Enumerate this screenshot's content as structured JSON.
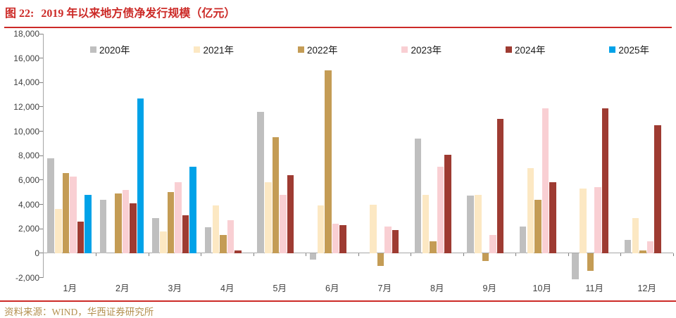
{
  "header": {
    "figure_label": "图 22:",
    "title": "2019 年以来地方债净发行规模（亿元）"
  },
  "footer": {
    "source": "资料来源：WIND，华西证券研究所"
  },
  "colors": {
    "title_red": "#CC2A27",
    "rule_red": "#CC2A27",
    "source_gold": "#B3904F",
    "axis_gray": "#A6A6A6",
    "label_gray": "#404040"
  },
  "chart_data": {
    "type": "bar",
    "title": "图 22: 2019 年以来地方债净发行规模（亿元）",
    "xlabel": "",
    "ylabel": "",
    "unit": "亿元",
    "ylim": [
      -2000,
      18000
    ],
    "ytick_step": 2000,
    "grid": false,
    "legend_position": "top",
    "categories": [
      "1月",
      "2月",
      "3月",
      "4月",
      "5月",
      "6月",
      "7月",
      "8月",
      "9月",
      "10月",
      "11月",
      "12月"
    ],
    "series": [
      {
        "name": "2020年",
        "color": "#BFBFBF",
        "values": [
          7800,
          4400,
          2900,
          2100,
          11600,
          -500,
          0,
          9400,
          4700,
          2200,
          -2100,
          1100
        ]
      },
      {
        "name": "2021年",
        "color": "#FCE8C3",
        "values": [
          3600,
          0,
          1800,
          3900,
          5800,
          3900,
          4000,
          4800,
          4800,
          7000,
          5300,
          2900
        ]
      },
      {
        "name": "2022年",
        "color": "#C49C55",
        "values": [
          6600,
          4900,
          5000,
          1500,
          9500,
          15000,
          -1000,
          1000,
          -600,
          4400,
          -1400,
          250
        ]
      },
      {
        "name": "2023年",
        "color": "#F9CFD3",
        "values": [
          6300,
          5200,
          5800,
          2700,
          4800,
          2400,
          2200,
          7100,
          1500,
          11900,
          5400,
          1000
        ]
      },
      {
        "name": "2024年",
        "color": "#9E3B32",
        "values": [
          2600,
          4100,
          3100,
          250,
          6400,
          2300,
          1900,
          8100,
          11000,
          5800,
          11900,
          10500
        ]
      },
      {
        "name": "2025年",
        "color": "#00A2E8",
        "values": [
          4800,
          12700,
          7100,
          null,
          null,
          null,
          null,
          null,
          null,
          null,
          null,
          null
        ]
      }
    ]
  }
}
